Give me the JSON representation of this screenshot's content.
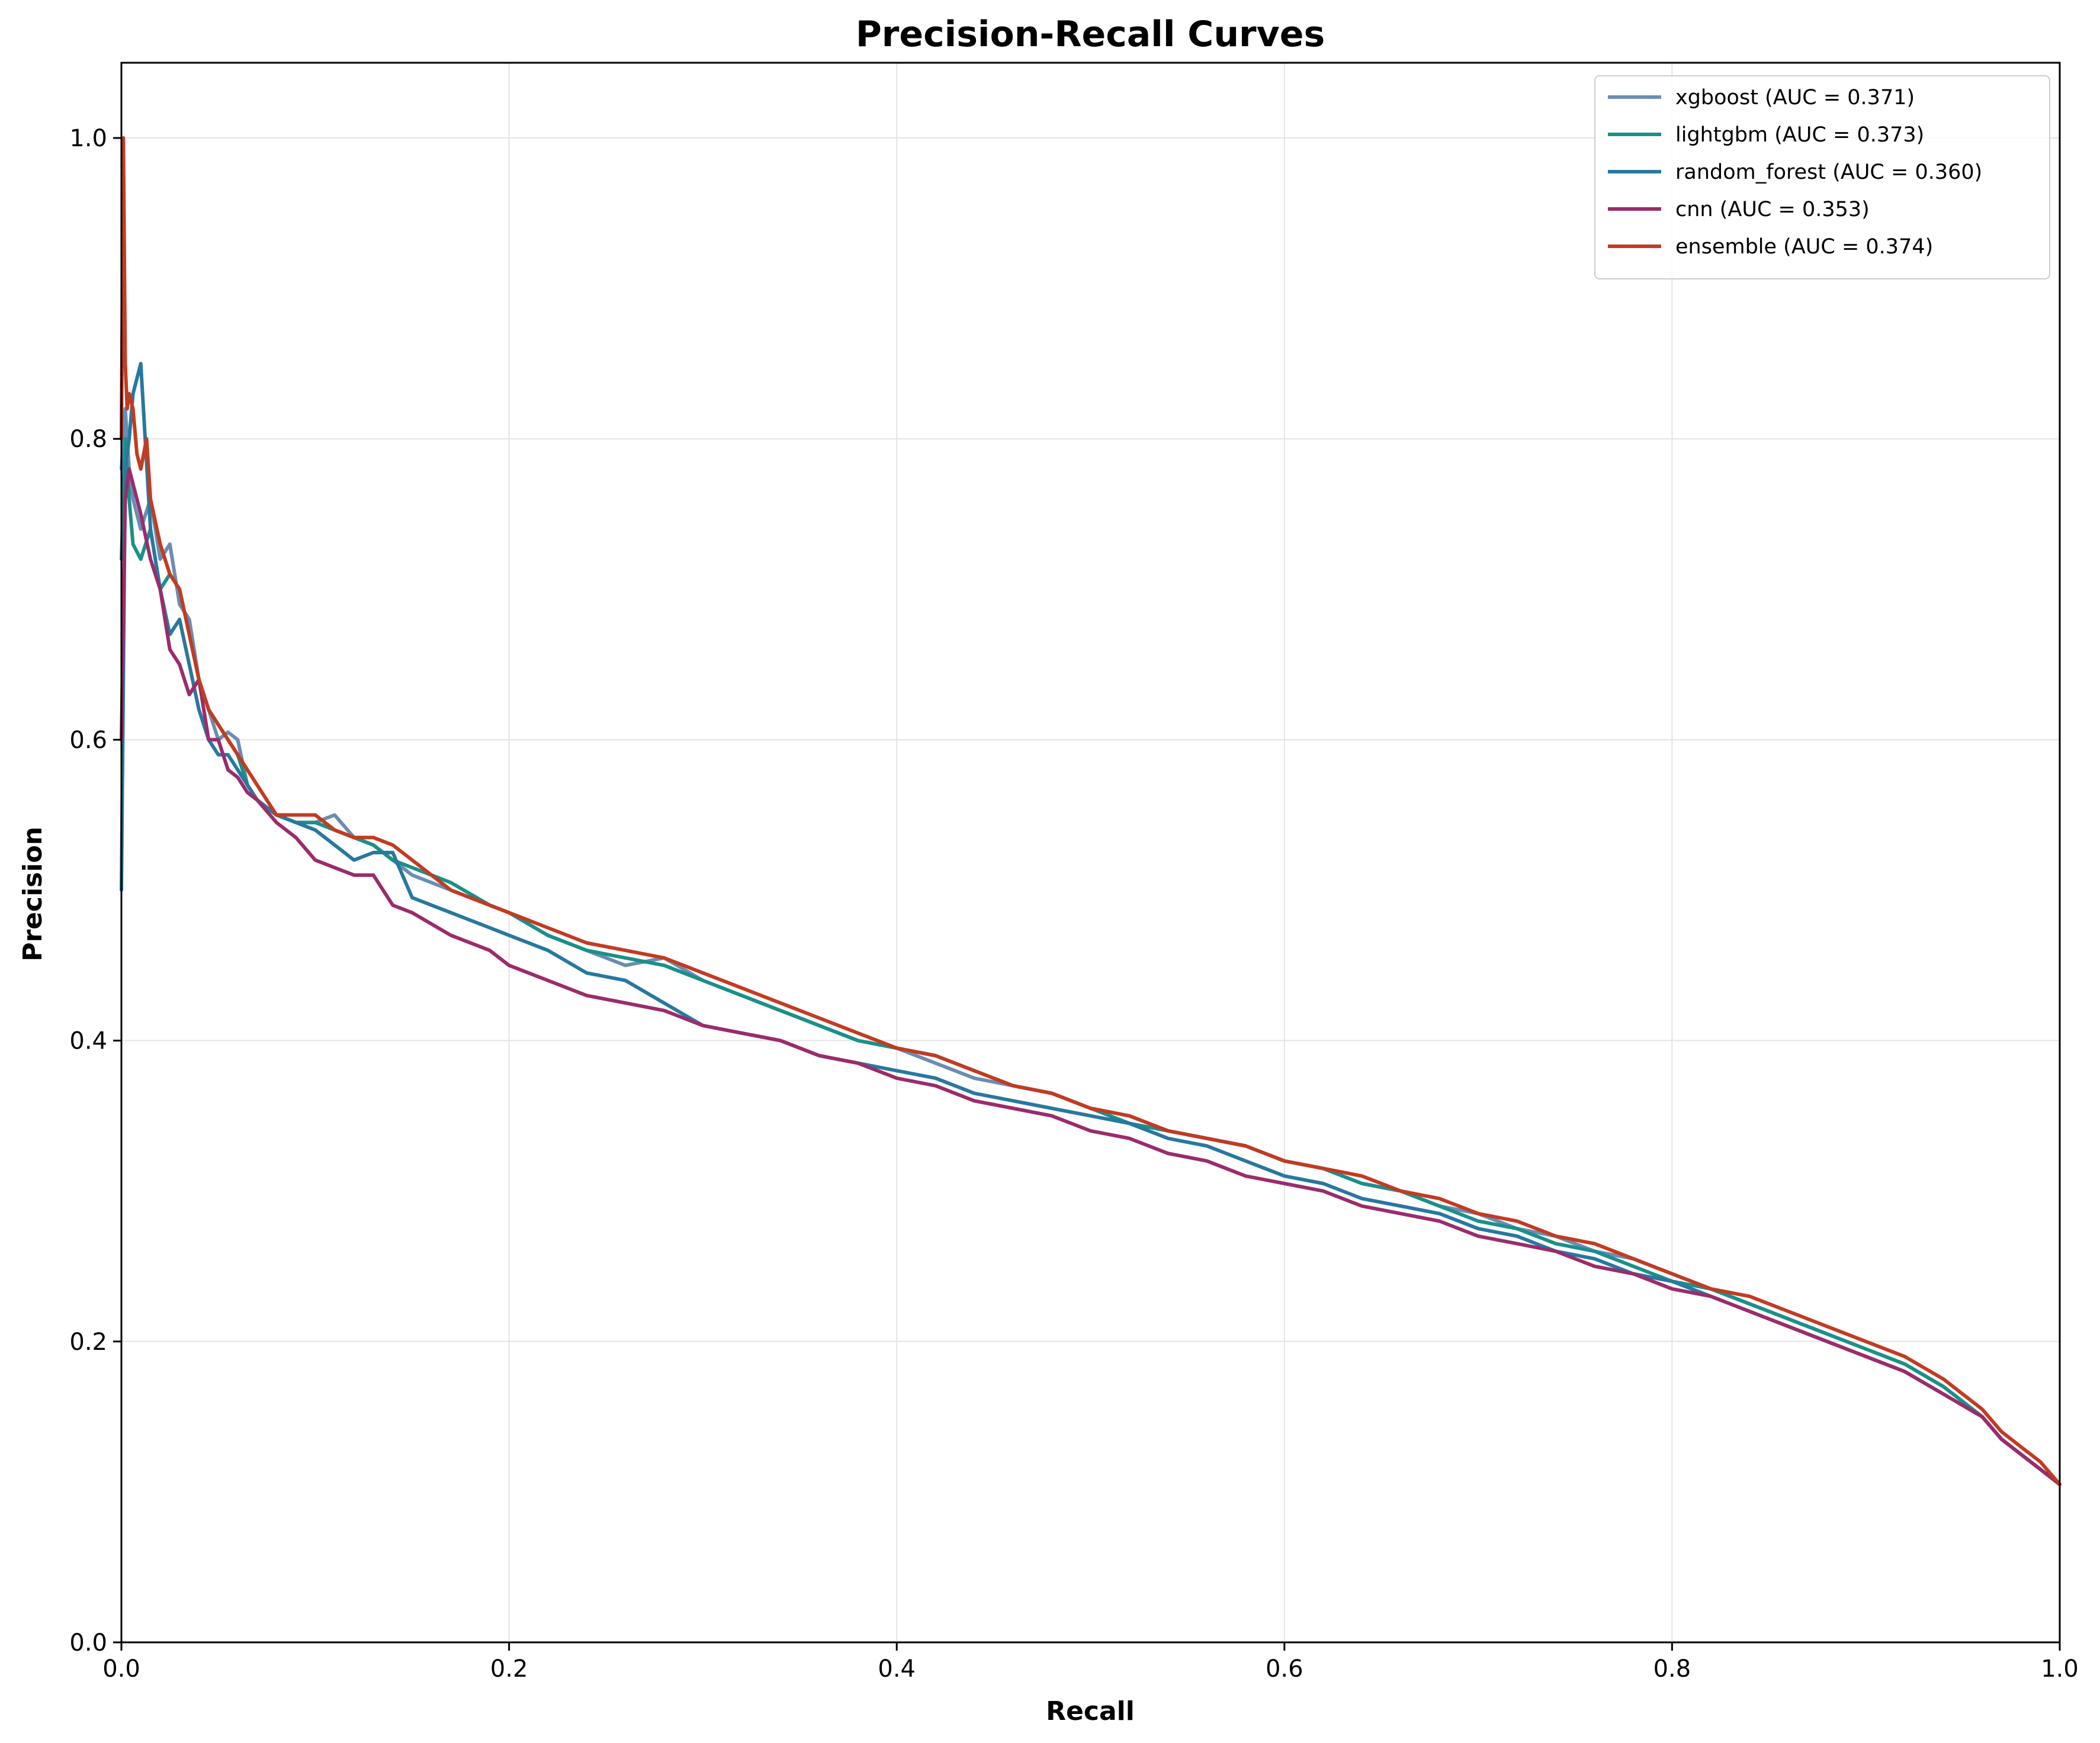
{
  "chart_data": {
    "type": "line",
    "title": "Precision-Recall Curves",
    "xlabel": "Recall",
    "ylabel": "Precision",
    "xlim": [
      0.0,
      1.0
    ],
    "ylim": [
      0.0,
      1.05
    ],
    "grid": true,
    "legend_position": "top-right",
    "xticks": [
      "0.0",
      "0.2",
      "0.4",
      "0.6",
      "0.8",
      "1.0"
    ],
    "yticks": [
      "0.0",
      "0.2",
      "0.4",
      "0.6",
      "0.8",
      "1.0"
    ],
    "series": [
      {
        "name": "xgboost (AUC = 0.371)",
        "color": "#6b8db3",
        "x": [
          0.0,
          0.002,
          0.004,
          0.006,
          0.01,
          0.015,
          0.02,
          0.025,
          0.03,
          0.035,
          0.04,
          0.045,
          0.05,
          0.055,
          0.06,
          0.065,
          0.07,
          0.08,
          0.09,
          0.1,
          0.11,
          0.12,
          0.13,
          0.14,
          0.15,
          0.17,
          0.19,
          0.2,
          0.22,
          0.24,
          0.26,
          0.28,
          0.3,
          0.32,
          0.34,
          0.36,
          0.38,
          0.4,
          0.42,
          0.44,
          0.46,
          0.48,
          0.5,
          0.52,
          0.54,
          0.56,
          0.58,
          0.6,
          0.62,
          0.64,
          0.66,
          0.68,
          0.7,
          0.72,
          0.74,
          0.76,
          0.78,
          0.8,
          0.82,
          0.84,
          0.86,
          0.88,
          0.9,
          0.92,
          0.94,
          0.96,
          0.97,
          0.98,
          0.99,
          1.0
        ],
        "y": [
          0.78,
          0.82,
          0.78,
          0.76,
          0.74,
          0.76,
          0.72,
          0.73,
          0.69,
          0.68,
          0.64,
          0.62,
          0.6,
          0.605,
          0.6,
          0.57,
          0.56,
          0.55,
          0.545,
          0.545,
          0.55,
          0.535,
          0.53,
          0.52,
          0.51,
          0.5,
          0.49,
          0.485,
          0.47,
          0.46,
          0.45,
          0.455,
          0.44,
          0.43,
          0.42,
          0.41,
          0.4,
          0.395,
          0.385,
          0.375,
          0.37,
          0.365,
          0.355,
          0.35,
          0.34,
          0.335,
          0.33,
          0.32,
          0.315,
          0.305,
          0.3,
          0.29,
          0.285,
          0.275,
          0.27,
          0.26,
          0.255,
          0.245,
          0.235,
          0.225,
          0.215,
          0.205,
          0.195,
          0.185,
          0.17,
          0.15,
          0.135,
          0.125,
          0.115,
          0.105
        ]
      },
      {
        "name": "lightgbm (AUC = 0.373)",
        "color": "#1a9088",
        "x": [
          0.0,
          0.002,
          0.004,
          0.006,
          0.01,
          0.015,
          0.02,
          0.025,
          0.03,
          0.035,
          0.04,
          0.045,
          0.05,
          0.055,
          0.06,
          0.065,
          0.07,
          0.08,
          0.09,
          0.1,
          0.11,
          0.12,
          0.13,
          0.14,
          0.15,
          0.17,
          0.19,
          0.2,
          0.22,
          0.24,
          0.26,
          0.28,
          0.3,
          0.32,
          0.34,
          0.36,
          0.38,
          0.4,
          0.42,
          0.44,
          0.46,
          0.48,
          0.5,
          0.52,
          0.54,
          0.56,
          0.58,
          0.6,
          0.62,
          0.64,
          0.66,
          0.68,
          0.7,
          0.72,
          0.74,
          0.76,
          0.78,
          0.8,
          0.82,
          0.84,
          0.86,
          0.88,
          0.9,
          0.92,
          0.94,
          0.96,
          0.97,
          0.98,
          0.99,
          1.0
        ],
        "y": [
          0.72,
          0.8,
          0.76,
          0.73,
          0.72,
          0.74,
          0.7,
          0.71,
          0.7,
          0.67,
          0.64,
          0.62,
          0.61,
          0.6,
          0.59,
          0.57,
          0.56,
          0.55,
          0.545,
          0.545,
          0.54,
          0.535,
          0.53,
          0.52,
          0.515,
          0.505,
          0.49,
          0.485,
          0.47,
          0.46,
          0.455,
          0.45,
          0.44,
          0.43,
          0.42,
          0.41,
          0.4,
          0.395,
          0.39,
          0.38,
          0.37,
          0.365,
          0.355,
          0.345,
          0.34,
          0.335,
          0.33,
          0.32,
          0.315,
          0.305,
          0.3,
          0.29,
          0.28,
          0.275,
          0.265,
          0.26,
          0.25,
          0.24,
          0.235,
          0.225,
          0.215,
          0.205,
          0.195,
          0.185,
          0.17,
          0.15,
          0.135,
          0.125,
          0.115,
          0.105
        ]
      },
      {
        "name": "random_forest (AUC = 0.360)",
        "color": "#2878a0",
        "x": [
          0.0,
          0.002,
          0.004,
          0.006,
          0.01,
          0.015,
          0.02,
          0.025,
          0.03,
          0.035,
          0.04,
          0.045,
          0.05,
          0.055,
          0.06,
          0.065,
          0.07,
          0.08,
          0.09,
          0.1,
          0.11,
          0.12,
          0.13,
          0.14,
          0.15,
          0.17,
          0.19,
          0.2,
          0.22,
          0.24,
          0.26,
          0.28,
          0.3,
          0.32,
          0.34,
          0.36,
          0.38,
          0.4,
          0.42,
          0.44,
          0.46,
          0.48,
          0.5,
          0.52,
          0.54,
          0.56,
          0.58,
          0.6,
          0.62,
          0.64,
          0.66,
          0.68,
          0.7,
          0.72,
          0.74,
          0.76,
          0.78,
          0.8,
          0.82,
          0.84,
          0.86,
          0.88,
          0.9,
          0.92,
          0.94,
          0.96,
          0.97,
          0.98,
          0.99,
          1.0
        ],
        "y": [
          0.5,
          0.78,
          0.8,
          0.83,
          0.85,
          0.74,
          0.7,
          0.67,
          0.68,
          0.65,
          0.62,
          0.6,
          0.59,
          0.59,
          0.58,
          0.57,
          0.56,
          0.55,
          0.545,
          0.54,
          0.53,
          0.52,
          0.525,
          0.525,
          0.495,
          0.485,
          0.475,
          0.47,
          0.46,
          0.445,
          0.44,
          0.425,
          0.41,
          0.405,
          0.4,
          0.39,
          0.385,
          0.38,
          0.375,
          0.365,
          0.36,
          0.355,
          0.35,
          0.345,
          0.335,
          0.33,
          0.32,
          0.31,
          0.305,
          0.295,
          0.29,
          0.285,
          0.275,
          0.27,
          0.26,
          0.255,
          0.245,
          0.24,
          0.23,
          0.22,
          0.21,
          0.2,
          0.19,
          0.18,
          0.165,
          0.15,
          0.135,
          0.125,
          0.115,
          0.105
        ]
      },
      {
        "name": "cnn (AUC = 0.353)",
        "color": "#9b2c6b",
        "x": [
          0.0,
          0.002,
          0.004,
          0.006,
          0.01,
          0.015,
          0.02,
          0.025,
          0.03,
          0.035,
          0.04,
          0.045,
          0.05,
          0.055,
          0.06,
          0.065,
          0.07,
          0.08,
          0.09,
          0.1,
          0.11,
          0.12,
          0.13,
          0.14,
          0.15,
          0.17,
          0.19,
          0.2,
          0.22,
          0.24,
          0.26,
          0.28,
          0.3,
          0.32,
          0.34,
          0.36,
          0.38,
          0.4,
          0.42,
          0.44,
          0.46,
          0.48,
          0.5,
          0.52,
          0.54,
          0.56,
          0.58,
          0.6,
          0.62,
          0.64,
          0.66,
          0.68,
          0.7,
          0.72,
          0.74,
          0.76,
          0.78,
          0.8,
          0.82,
          0.84,
          0.86,
          0.88,
          0.9,
          0.92,
          0.94,
          0.96,
          0.97,
          0.98,
          0.99,
          1.0
        ],
        "y": [
          0.6,
          0.76,
          0.78,
          0.77,
          0.75,
          0.72,
          0.7,
          0.66,
          0.65,
          0.63,
          0.64,
          0.6,
          0.6,
          0.58,
          0.575,
          0.565,
          0.56,
          0.545,
          0.535,
          0.52,
          0.515,
          0.51,
          0.51,
          0.49,
          0.485,
          0.47,
          0.46,
          0.45,
          0.44,
          0.43,
          0.425,
          0.42,
          0.41,
          0.405,
          0.4,
          0.39,
          0.385,
          0.375,
          0.37,
          0.36,
          0.355,
          0.35,
          0.34,
          0.335,
          0.325,
          0.32,
          0.31,
          0.305,
          0.3,
          0.29,
          0.285,
          0.28,
          0.27,
          0.265,
          0.26,
          0.25,
          0.245,
          0.235,
          0.23,
          0.22,
          0.21,
          0.2,
          0.19,
          0.18,
          0.165,
          0.15,
          0.135,
          0.125,
          0.115,
          0.105
        ]
      },
      {
        "name": "ensemble (AUC = 0.374)",
        "color": "#c23b22",
        "x": [
          0.0,
          0.001,
          0.002,
          0.003,
          0.004,
          0.006,
          0.008,
          0.01,
          0.013,
          0.015,
          0.02,
          0.025,
          0.03,
          0.035,
          0.04,
          0.045,
          0.05,
          0.055,
          0.06,
          0.065,
          0.07,
          0.08,
          0.09,
          0.1,
          0.11,
          0.12,
          0.13,
          0.14,
          0.15,
          0.17,
          0.19,
          0.2,
          0.22,
          0.24,
          0.26,
          0.28,
          0.3,
          0.32,
          0.34,
          0.36,
          0.38,
          0.4,
          0.42,
          0.44,
          0.46,
          0.48,
          0.5,
          0.52,
          0.54,
          0.56,
          0.58,
          0.6,
          0.62,
          0.64,
          0.66,
          0.68,
          0.7,
          0.72,
          0.74,
          0.76,
          0.78,
          0.8,
          0.82,
          0.84,
          0.86,
          0.88,
          0.9,
          0.92,
          0.94,
          0.96,
          0.97,
          0.98,
          0.99,
          1.0
        ],
        "y": [
          0.8,
          1.0,
          0.85,
          0.82,
          0.83,
          0.82,
          0.79,
          0.78,
          0.8,
          0.76,
          0.73,
          0.71,
          0.7,
          0.67,
          0.64,
          0.62,
          0.61,
          0.6,
          0.59,
          0.58,
          0.57,
          0.55,
          0.55,
          0.55,
          0.54,
          0.535,
          0.535,
          0.53,
          0.52,
          0.5,
          0.49,
          0.485,
          0.475,
          0.465,
          0.46,
          0.455,
          0.445,
          0.435,
          0.425,
          0.415,
          0.405,
          0.395,
          0.39,
          0.38,
          0.37,
          0.365,
          0.355,
          0.35,
          0.34,
          0.335,
          0.33,
          0.32,
          0.315,
          0.31,
          0.3,
          0.295,
          0.285,
          0.28,
          0.27,
          0.265,
          0.255,
          0.245,
          0.235,
          0.23,
          0.22,
          0.21,
          0.2,
          0.19,
          0.175,
          0.155,
          0.14,
          0.13,
          0.12,
          0.105
        ]
      }
    ]
  }
}
